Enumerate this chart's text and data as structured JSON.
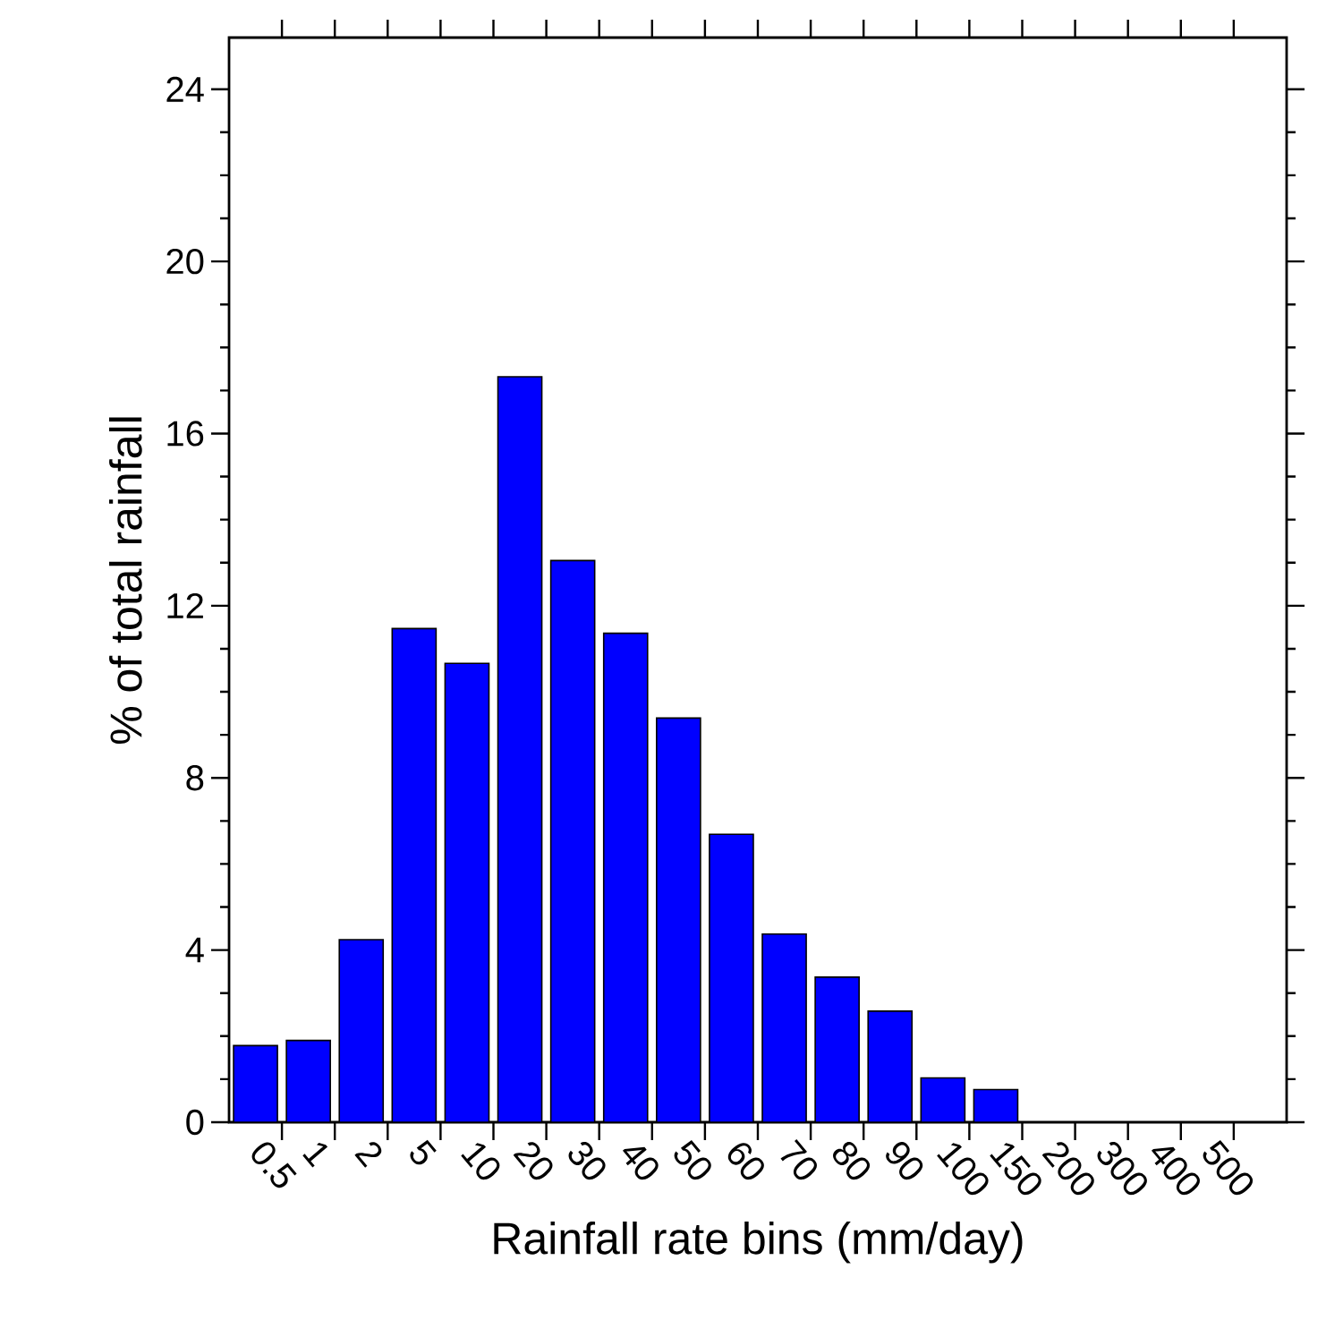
{
  "chart_data": {
    "type": "bar",
    "xlabel": "Rainfall rate bins (mm/day)",
    "ylabel": "% of total rainfall",
    "categories": [
      "0.5",
      "1",
      "2",
      "5",
      "10",
      "20",
      "30",
      "40",
      "50",
      "60",
      "70",
      "80",
      "90",
      "100",
      "150",
      "200",
      "300",
      "400",
      "500",
      null
    ],
    "values": [
      1.78,
      1.9,
      4.24,
      11.47,
      10.66,
      17.32,
      13.05,
      11.36,
      9.39,
      6.69,
      4.37,
      3.37,
      2.58,
      1.03,
      0.76,
      null,
      null,
      null,
      null,
      null
    ],
    "color": "#0000ff",
    "ylim": [
      0,
      25.2
    ],
    "yticks": [
      0,
      4,
      8,
      12,
      16,
      20,
      24
    ]
  }
}
